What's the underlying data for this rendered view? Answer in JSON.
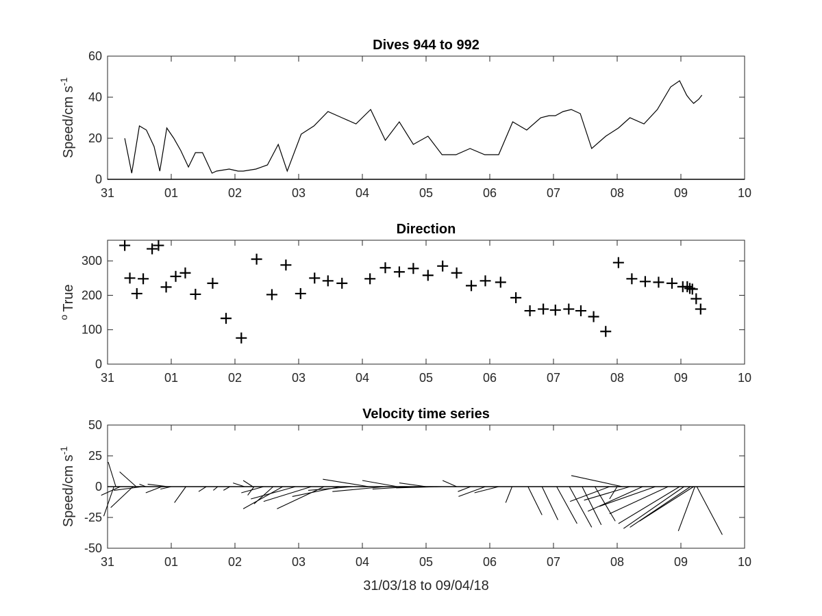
{
  "chart_data": [
    {
      "type": "line",
      "title": "Dives 944 to 992",
      "ylabel_main": "Speed/cm s",
      "ylabel_sup": "-1",
      "xlim": [
        0,
        10
      ],
      "ylim": [
        0,
        60
      ],
      "xticks": [
        0,
        1,
        2,
        3,
        4,
        5,
        6,
        7,
        8,
        9,
        10
      ],
      "xtick_labels": [
        "31",
        "01",
        "02",
        "03",
        "04",
        "05",
        "06",
        "07",
        "08",
        "09",
        "10"
      ],
      "yticks": [
        0,
        20,
        40,
        60
      ],
      "ytick_labels": [
        "0",
        "20",
        "40",
        "60"
      ],
      "x": [
        0.27,
        0.38,
        0.5,
        0.61,
        0.73,
        0.82,
        0.93,
        1.04,
        1.15,
        1.27,
        1.38,
        1.49,
        1.64,
        1.71,
        1.91,
        2.05,
        2.13,
        2.33,
        2.51,
        2.68,
        2.82,
        3.04,
        3.24,
        3.46,
        3.68,
        3.9,
        4.13,
        4.36,
        4.58,
        4.8,
        5.03,
        5.25,
        5.47,
        5.69,
        5.92,
        6.14,
        6.36,
        6.58,
        6.8,
        6.93,
        7.03,
        7.15,
        7.28,
        7.42,
        7.6,
        7.82,
        8.02,
        8.2,
        8.42,
        8.63,
        8.84,
        8.98,
        9.09,
        9.14,
        9.2,
        9.28,
        9.33
      ],
      "y": [
        20,
        3,
        26,
        24,
        16,
        4,
        25,
        20,
        14,
        6,
        13,
        13,
        3,
        4,
        5,
        4,
        4,
        5,
        7,
        17,
        4,
        22,
        26,
        33,
        30,
        27,
        34,
        19,
        28,
        17,
        21,
        12,
        12,
        15,
        12,
        12,
        28,
        24,
        30,
        31,
        31,
        33,
        34,
        32,
        15,
        21,
        25,
        30,
        27,
        34,
        45,
        48,
        41,
        39,
        37,
        39,
        41
      ]
    },
    {
      "type": "scatter",
      "title": "Direction",
      "ylabel_main": "True",
      "ylabel_sup": "o",
      "xlim": [
        0,
        10
      ],
      "ylim": [
        0,
        360
      ],
      "xticks": [
        0,
        1,
        2,
        3,
        4,
        5,
        6,
        7,
        8,
        9,
        10
      ],
      "xtick_labels": [
        "31",
        "01",
        "02",
        "03",
        "04",
        "05",
        "06",
        "07",
        "08",
        "09",
        "10"
      ],
      "yticks": [
        0,
        100,
        200,
        300
      ],
      "ytick_labels": [
        "0",
        "100",
        "200",
        "300"
      ],
      "x": [
        0.27,
        0.35,
        0.46,
        0.56,
        0.7,
        0.8,
        0.92,
        1.07,
        1.22,
        1.38,
        1.65,
        1.86,
        2.1,
        2.34,
        2.58,
        2.8,
        3.03,
        3.25,
        3.46,
        3.68,
        4.12,
        4.36,
        4.58,
        4.8,
        5.03,
        5.26,
        5.48,
        5.71,
        5.93,
        6.17,
        6.41,
        6.63,
        6.84,
        7.03,
        7.24,
        7.43,
        7.63,
        7.82,
        8.02,
        8.23,
        8.44,
        8.65,
        8.86,
        9.03,
        9.1,
        9.14,
        9.18,
        9.24,
        9.31
      ],
      "y": [
        345,
        250,
        205,
        248,
        335,
        345,
        224,
        255,
        265,
        203,
        235,
        133,
        76,
        305,
        202,
        288,
        205,
        250,
        242,
        235,
        248,
        280,
        268,
        278,
        258,
        285,
        265,
        228,
        242,
        238,
        193,
        155,
        160,
        157,
        160,
        155,
        138,
        95,
        295,
        248,
        240,
        238,
        235,
        225,
        225,
        220,
        218,
        190,
        160
      ]
    },
    {
      "type": "stick",
      "title": "Velocity time series",
      "ylabel_main": "Speed/cm s",
      "ylabel_sup": "-1",
      "xlabel": "31/03/18 to 09/04/18",
      "xlim": [
        0,
        10
      ],
      "ylim": [
        -50,
        50
      ],
      "xticks": [
        0,
        1,
        2,
        3,
        4,
        5,
        6,
        7,
        8,
        9,
        10
      ],
      "xtick_labels": [
        "31",
        "01",
        "02",
        "03",
        "04",
        "05",
        "06",
        "07",
        "08",
        "09",
        "10"
      ],
      "yticks": [
        -50,
        -25,
        0,
        25,
        50
      ],
      "ytick_labels": [
        "-50",
        "-25",
        "0",
        "25",
        "50"
      ],
      "sticks": [
        {
          "x": 0.13,
          "dx": -0.12,
          "dy": 20
        },
        {
          "x": 0.1,
          "dx": -0.16,
          "dy": -24
        },
        {
          "x": 0.2,
          "dx": -0.3,
          "dy": -7
        },
        {
          "x": 0.45,
          "dx": -0.26,
          "dy": 12
        },
        {
          "x": 0.4,
          "dx": -0.35,
          "dy": -17
        },
        {
          "x": 0.6,
          "dx": -0.1,
          "dy": 2
        },
        {
          "x": 0.55,
          "dx": -0.45,
          "dy": -3
        },
        {
          "x": 0.85,
          "dx": -0.25,
          "dy": -5
        },
        {
          "x": 0.95,
          "dx": -0.32,
          "dy": 2
        },
        {
          "x": 1.0,
          "dx": -0.17,
          "dy": -2
        },
        {
          "x": 1.23,
          "dx": -0.18,
          "dy": -13
        },
        {
          "x": 1.55,
          "dx": -0.12,
          "dy": -4
        },
        {
          "x": 1.73,
          "dx": -0.07,
          "dy": -3
        },
        {
          "x": 1.92,
          "dx": -0.1,
          "dy": -3
        },
        {
          "x": 2.15,
          "dx": -0.18,
          "dy": 3
        },
        {
          "x": 2.28,
          "dx": -0.15,
          "dy": 5
        },
        {
          "x": 2.3,
          "dx": -0.1,
          "dy": -7
        },
        {
          "x": 2.45,
          "dx": -0.35,
          "dy": -5
        },
        {
          "x": 2.6,
          "dx": -0.3,
          "dy": -14
        },
        {
          "x": 2.75,
          "dx": -0.62,
          "dy": -18
        },
        {
          "x": 2.95,
          "dx": -0.7,
          "dy": -10
        },
        {
          "x": 3.2,
          "dx": -0.75,
          "dy": -12
        },
        {
          "x": 3.4,
          "dx": -0.74,
          "dy": -18
        },
        {
          "x": 3.65,
          "dx": -0.75,
          "dy": -8
        },
        {
          "x": 3.85,
          "dx": -0.7,
          "dy": -3
        },
        {
          "x": 4.1,
          "dx": -0.72,
          "dy": 6
        },
        {
          "x": 4.35,
          "dx": -0.82,
          "dy": -4
        },
        {
          "x": 4.55,
          "dx": -0.55,
          "dy": 5
        },
        {
          "x": 4.78,
          "dx": -0.62,
          "dy": -2
        },
        {
          "x": 5.0,
          "dx": -0.42,
          "dy": 3
        },
        {
          "x": 5.25,
          "dx": -0.72,
          "dy": -1
        },
        {
          "x": 5.48,
          "dx": -0.22,
          "dy": 5
        },
        {
          "x": 5.7,
          "dx": -0.2,
          "dy": -4
        },
        {
          "x": 5.93,
          "dx": -0.42,
          "dy": -8
        },
        {
          "x": 6.14,
          "dx": -0.38,
          "dy": -5
        },
        {
          "x": 6.35,
          "dx": -0.1,
          "dy": -13
        },
        {
          "x": 6.6,
          "dx": 0.22,
          "dy": -23
        },
        {
          "x": 6.82,
          "dx": 0.25,
          "dy": -27
        },
        {
          "x": 7.05,
          "dx": 0.32,
          "dy": -30
        },
        {
          "x": 7.25,
          "dx": 0.35,
          "dy": -33
        },
        {
          "x": 7.45,
          "dx": 0.3,
          "dy": -31
        },
        {
          "x": 7.65,
          "dx": 0.32,
          "dy": -28
        },
        {
          "x": 7.88,
          "dx": -0.62,
          "dy": -12
        },
        {
          "x": 8.0,
          "dx": -0.12,
          "dy": -10
        },
        {
          "x": 8.08,
          "dx": -0.8,
          "dy": 9
        },
        {
          "x": 8.2,
          "dx": -0.72,
          "dy": -11
        },
        {
          "x": 8.4,
          "dx": -0.86,
          "dy": -20
        },
        {
          "x": 8.6,
          "dx": -0.88,
          "dy": -16
        },
        {
          "x": 8.8,
          "dx": -0.92,
          "dy": -22
        },
        {
          "x": 8.98,
          "dx": -0.96,
          "dy": -30
        },
        {
          "x": 9.05,
          "dx": -0.95,
          "dy": -34
        },
        {
          "x": 9.15,
          "dx": -0.95,
          "dy": -33
        },
        {
          "x": 9.2,
          "dx": -0.85,
          "dy": -28
        },
        {
          "x": 9.22,
          "dx": -0.26,
          "dy": -36
        },
        {
          "x": 9.25,
          "dx": 0.4,
          "dy": -39
        }
      ]
    }
  ]
}
